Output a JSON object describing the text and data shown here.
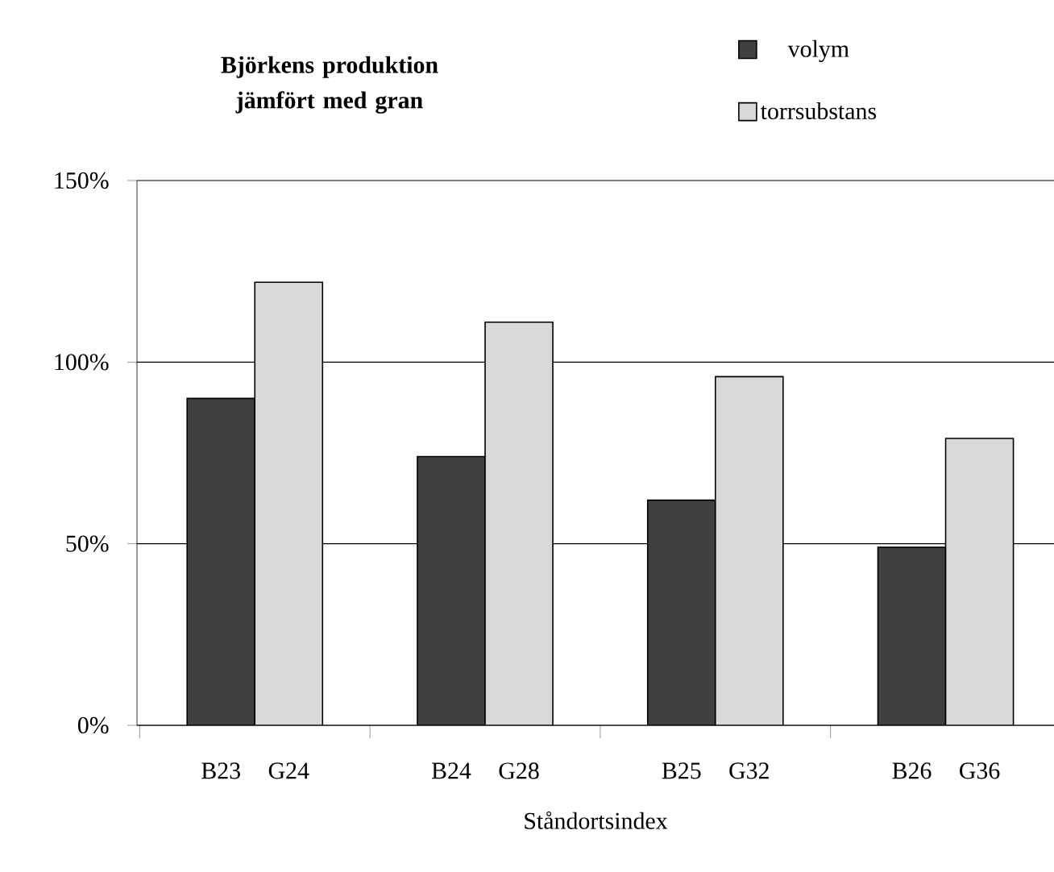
{
  "chart_data": {
    "type": "bar",
    "title": "Björkens produktion jämfört med gran",
    "xlabel": "Ståndortsindex",
    "categories": [
      "B23",
      "G24",
      "B24",
      "G28",
      "B25",
      "G32",
      "B26",
      "G36"
    ],
    "series": [
      {
        "name": "volym",
        "color": "#404040",
        "values": [
          90,
          null,
          74,
          null,
          62,
          null,
          49,
          null
        ]
      },
      {
        "name": "torrsubstans",
        "color": "#d9d9d9",
        "values": [
          null,
          122,
          null,
          111,
          null,
          96,
          null,
          79
        ]
      }
    ],
    "ylim": [
      0,
      150
    ],
    "yticks": [
      {
        "value": 0,
        "label": "0%"
      },
      {
        "value": 50,
        "label": "50%"
      },
      {
        "value": 100,
        "label": "100%"
      },
      {
        "value": 150,
        "label": "150%"
      }
    ],
    "grid": "y",
    "legend": "top right"
  }
}
